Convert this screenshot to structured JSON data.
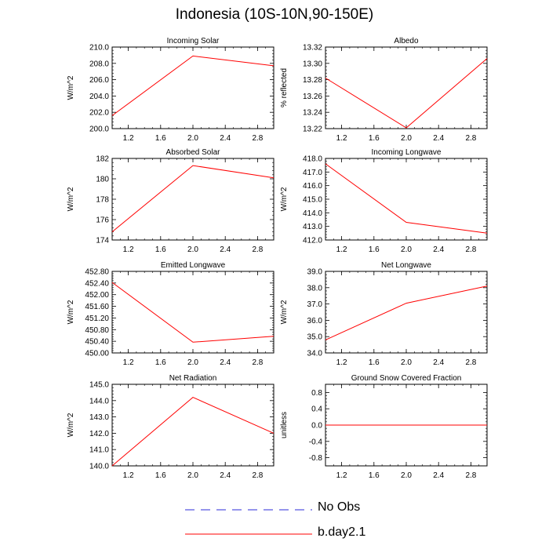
{
  "page_title": "Indonesia (10S-10N,90-150E)",
  "legend": [
    {
      "label": "No Obs",
      "color": "#2b2bd8",
      "dashed": true
    },
    {
      "label": "b.day2.1",
      "color": "#ff0000",
      "dashed": false
    }
  ],
  "chart_data": [
    {
      "type": "line",
      "title": "Incoming Solar",
      "ylabel": "W/m^2",
      "xlabel": "",
      "xlim": [
        1.0,
        3.0
      ],
      "ylim": [
        200.0,
        210.0
      ],
      "xticks": [
        1.2,
        1.6,
        2.0,
        2.4,
        2.8
      ],
      "xtick_labels": [
        "1.2",
        "1.6",
        "2.0",
        "2.4",
        "2.8"
      ],
      "yticks": [
        200,
        202,
        204,
        206,
        208,
        210
      ],
      "ytick_labels": [
        "200.0",
        "202.0",
        "204.0",
        "206.0",
        "208.0",
        "210.0"
      ],
      "series": [
        {
          "name": "b.day2.1",
          "x": [
            1.0,
            2.0,
            3.0
          ],
          "values": [
            201.6,
            208.9,
            207.7
          ]
        }
      ]
    },
    {
      "type": "line",
      "title": "Albedo",
      "ylabel": "% reflected",
      "xlabel": "",
      "xlim": [
        1.0,
        3.0
      ],
      "ylim": [
        13.22,
        13.32
      ],
      "xticks": [
        1.2,
        1.6,
        2.0,
        2.4,
        2.8
      ],
      "xtick_labels": [
        "1.2",
        "1.6",
        "2.0",
        "2.4",
        "2.8"
      ],
      "yticks": [
        13.22,
        13.24,
        13.26,
        13.28,
        13.3,
        13.32
      ],
      "ytick_labels": [
        "13.22",
        "13.24",
        "13.26",
        "13.28",
        "13.30",
        "13.32"
      ],
      "series": [
        {
          "name": "b.day2.1",
          "x": [
            1.0,
            2.0,
            3.0
          ],
          "values": [
            13.282,
            13.221,
            13.306
          ]
        }
      ]
    },
    {
      "type": "line",
      "title": "Absorbed Solar",
      "ylabel": "W/m^2",
      "xlabel": "",
      "xlim": [
        1.0,
        3.0
      ],
      "ylim": [
        174,
        182
      ],
      "xticks": [
        1.2,
        1.6,
        2.0,
        2.4,
        2.8
      ],
      "xtick_labels": [
        "1.2",
        "1.6",
        "2.0",
        "2.4",
        "2.8"
      ],
      "yticks": [
        174,
        176,
        178,
        180,
        182
      ],
      "ytick_labels": [
        "174",
        "176",
        "178",
        "180",
        "182"
      ],
      "series": [
        {
          "name": "b.day2.1",
          "x": [
            1.0,
            2.0,
            3.0
          ],
          "values": [
            174.8,
            181.3,
            180.1
          ]
        }
      ]
    },
    {
      "type": "line",
      "title": "Incoming Longwave",
      "ylabel": "W/m^2",
      "xlabel": "",
      "xlim": [
        1.0,
        3.0
      ],
      "ylim": [
        412.0,
        418.0
      ],
      "xticks": [
        1.2,
        1.6,
        2.0,
        2.4,
        2.8
      ],
      "xtick_labels": [
        "1.2",
        "1.6",
        "2.0",
        "2.4",
        "2.8"
      ],
      "yticks": [
        412,
        413,
        414,
        415,
        416,
        417,
        418
      ],
      "ytick_labels": [
        "412.0",
        "413.0",
        "414.0",
        "415.0",
        "416.0",
        "417.0",
        "418.0"
      ],
      "series": [
        {
          "name": "b.day2.1",
          "x": [
            1.0,
            2.0,
            3.0
          ],
          "values": [
            417.6,
            413.3,
            412.5
          ]
        }
      ]
    },
    {
      "type": "line",
      "title": "Emitted Longwave",
      "ylabel": "W/m^2",
      "xlabel": "",
      "xlim": [
        1.0,
        3.0
      ],
      "ylim": [
        450.0,
        452.8
      ],
      "xticks": [
        1.2,
        1.6,
        2.0,
        2.4,
        2.8
      ],
      "xtick_labels": [
        "1.2",
        "1.6",
        "2.0",
        "2.4",
        "2.8"
      ],
      "yticks": [
        450.0,
        450.4,
        450.8,
        451.2,
        451.6,
        452.0,
        452.4,
        452.8
      ],
      "ytick_labels": [
        "450.00",
        "450.40",
        "450.80",
        "451.20",
        "451.60",
        "452.00",
        "452.40",
        "452.80"
      ],
      "series": [
        {
          "name": "b.day2.1",
          "x": [
            1.0,
            2.0,
            3.0
          ],
          "values": [
            452.42,
            450.37,
            450.57
          ]
        }
      ]
    },
    {
      "type": "line",
      "title": "Net Longwave",
      "ylabel": "W/m^2",
      "xlabel": "",
      "xlim": [
        1.0,
        3.0
      ],
      "ylim": [
        34.0,
        39.0
      ],
      "xticks": [
        1.2,
        1.6,
        2.0,
        2.4,
        2.8
      ],
      "xtick_labels": [
        "1.2",
        "1.6",
        "2.0",
        "2.4",
        "2.8"
      ],
      "yticks": [
        34,
        35,
        36,
        37,
        38,
        39
      ],
      "ytick_labels": [
        "34.0",
        "35.0",
        "36.0",
        "37.0",
        "38.0",
        "39.0"
      ],
      "series": [
        {
          "name": "b.day2.1",
          "x": [
            1.0,
            2.0,
            3.0
          ],
          "values": [
            34.8,
            37.05,
            38.1
          ]
        }
      ]
    },
    {
      "type": "line",
      "title": "Net Radiation",
      "ylabel": "W/m^2",
      "xlabel": "",
      "xlim": [
        1.0,
        3.0
      ],
      "ylim": [
        140.0,
        145.0
      ],
      "xticks": [
        1.2,
        1.6,
        2.0,
        2.4,
        2.8
      ],
      "xtick_labels": [
        "1.2",
        "1.6",
        "2.0",
        "2.4",
        "2.8"
      ],
      "yticks": [
        140,
        141,
        142,
        143,
        144,
        145
      ],
      "ytick_labels": [
        "140.0",
        "141.0",
        "142.0",
        "143.0",
        "144.0",
        "145.0"
      ],
      "series": [
        {
          "name": "b.day2.1",
          "x": [
            1.0,
            2.0,
            3.0
          ],
          "values": [
            140.0,
            144.2,
            142.0
          ]
        }
      ]
    },
    {
      "type": "line",
      "title": "Ground Snow Covered Fraction",
      "ylabel": "unitless",
      "xlabel": "",
      "xlim": [
        1.0,
        3.0
      ],
      "ylim": [
        -1.0,
        1.0
      ],
      "xticks": [
        1.2,
        1.6,
        2.0,
        2.4,
        2.8
      ],
      "xtick_labels": [
        "1.2",
        "1.6",
        "2.0",
        "2.4",
        "2.8"
      ],
      "yticks": [
        -0.8,
        -0.4,
        0.0,
        0.4,
        0.8
      ],
      "ytick_labels": [
        "-0.8",
        "-0.4",
        "0.0",
        "0.4",
        "0.8"
      ],
      "series": [
        {
          "name": "b.day2.1",
          "x": [
            1.0,
            2.0,
            3.0
          ],
          "values": [
            0.0,
            0.0,
            0.0
          ]
        }
      ]
    }
  ]
}
